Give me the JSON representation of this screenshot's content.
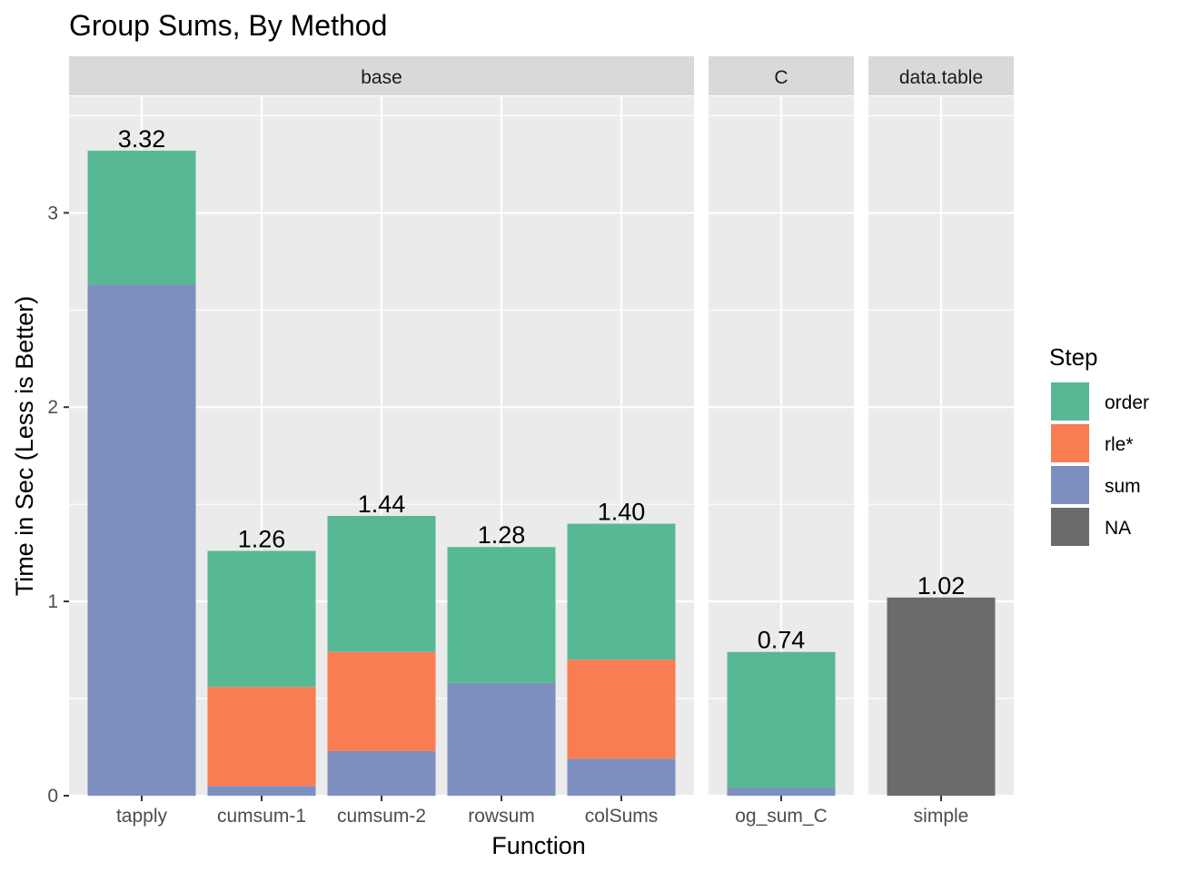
{
  "chart_data": {
    "type": "bar",
    "stacked": true,
    "title": "Group Sums, By Method",
    "xlabel": "Function",
    "ylabel": "Time in Sec (Less is Better)",
    "ylim": [
      0,
      3.6
    ],
    "yticks": [
      0,
      1,
      2,
      3
    ],
    "grid": true,
    "legend": {
      "title": "Step",
      "position": "right",
      "items": [
        {
          "name": "order",
          "color": "#57b994"
        },
        {
          "name": "rle*",
          "color": "#f97c52"
        },
        {
          "name": "sum",
          "color": "#7d8fbf"
        },
        {
          "name": "NA",
          "color": "#6b6b6b"
        }
      ]
    },
    "facets": [
      {
        "name": "base",
        "categories": [
          "tapply",
          "cumsum-1",
          "cumsum-2",
          "rowsum",
          "colSums"
        ],
        "totals": [
          "3.32",
          "1.26",
          "1.44",
          "1.28",
          "1.40"
        ],
        "series": [
          {
            "name": "sum",
            "values": [
              2.63,
              0.05,
              0.23,
              0.58,
              0.19
            ]
          },
          {
            "name": "rle*",
            "values": [
              0,
              0.51,
              0.51,
              0,
              0.51
            ]
          },
          {
            "name": "order",
            "values": [
              0.69,
              0.7,
              0.7,
              0.7,
              0.7
            ]
          },
          {
            "name": "NA",
            "values": [
              0,
              0,
              0,
              0,
              0
            ]
          }
        ]
      },
      {
        "name": "C",
        "categories": [
          "og_sum_C"
        ],
        "totals": [
          "0.74"
        ],
        "series": [
          {
            "name": "sum",
            "values": [
              0.04
            ]
          },
          {
            "name": "rle*",
            "values": [
              0
            ]
          },
          {
            "name": "order",
            "values": [
              0.7
            ]
          },
          {
            "name": "NA",
            "values": [
              0
            ]
          }
        ]
      },
      {
        "name": "data.table",
        "categories": [
          "simple"
        ],
        "totals": [
          "1.02"
        ],
        "series": [
          {
            "name": "sum",
            "values": [
              0
            ]
          },
          {
            "name": "rle*",
            "values": [
              0
            ]
          },
          {
            "name": "order",
            "values": [
              0
            ]
          },
          {
            "name": "NA",
            "values": [
              1.02
            ]
          }
        ]
      }
    ]
  }
}
